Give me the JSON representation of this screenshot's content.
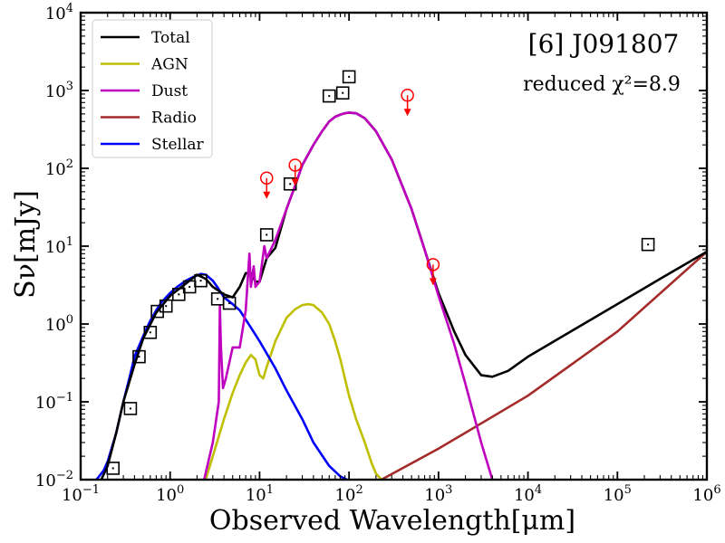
{
  "chart_data": {
    "type": "line",
    "title": "[6] J091807",
    "subtitle": "reduced χ²=8.9",
    "xlabel": "Observed Wavelength[μm]",
    "ylabel": "Sν[mJy]",
    "x_scale": "log",
    "y_scale": "log",
    "xlim": [
      0.1,
      1000000
    ],
    "ylim": [
      0.01,
      10000
    ],
    "x_ticks": [
      {
        "value": 0.1,
        "base": "10",
        "exp": "−1"
      },
      {
        "value": 1,
        "base": "10",
        "exp": "0"
      },
      {
        "value": 10,
        "base": "10",
        "exp": "1"
      },
      {
        "value": 100,
        "base": "10",
        "exp": "2"
      },
      {
        "value": 1000,
        "base": "10",
        "exp": "3"
      },
      {
        "value": 10000,
        "base": "10",
        "exp": "4"
      },
      {
        "value": 100000,
        "base": "10",
        "exp": "5"
      },
      {
        "value": 1000000,
        "base": "10",
        "exp": "6"
      }
    ],
    "y_ticks": [
      {
        "value": 0.01,
        "base": "10",
        "exp": "−2"
      },
      {
        "value": 0.1,
        "base": "10",
        "exp": "−1"
      },
      {
        "value": 1,
        "base": "10",
        "exp": "0"
      },
      {
        "value": 10,
        "base": "10",
        "exp": "1"
      },
      {
        "value": 100,
        "base": "10",
        "exp": "2"
      },
      {
        "value": 1000,
        "base": "10",
        "exp": "3"
      },
      {
        "value": 10000,
        "base": "10",
        "exp": "4"
      }
    ],
    "legend_position": "top-left",
    "grid": false,
    "series": [
      {
        "name": "Total",
        "color": "#000000",
        "x": [
          0.17,
          0.2,
          0.25,
          0.3,
          0.4,
          0.5,
          0.7,
          1.0,
          1.5,
          2.0,
          2.5,
          3.0,
          4.0,
          5.0,
          6.0,
          7.0,
          8.0,
          9.0,
          10.0,
          12.0,
          15.0,
          20.0,
          25.0,
          30.0,
          40.0,
          50.0,
          60.0,
          70.0,
          80.0,
          90.0,
          100.0,
          120.0,
          150.0,
          200.0,
          300.0,
          500.0,
          700.0,
          1000.0,
          1500.0,
          2000.0,
          3000.0,
          4000.0,
          6000.0,
          10000.0,
          30000.0,
          100000.0,
          300000.0,
          1000000.0
        ],
        "y": [
          0.01,
          0.015,
          0.04,
          0.1,
          0.3,
          0.65,
          1.4,
          2.3,
          3.3,
          4.3,
          3.8,
          3.0,
          2.4,
          2.2,
          3.0,
          4.5,
          4.5,
          3.5,
          3.5,
          7.0,
          9.5,
          30.0,
          60.0,
          110.0,
          200.0,
          300.0,
          400.0,
          460.0,
          490.0,
          510.0,
          520.0,
          510.0,
          440.0,
          300.0,
          130.0,
          30.0,
          9.0,
          2.5,
          0.8,
          0.4,
          0.22,
          0.21,
          0.25,
          0.38,
          0.8,
          1.8,
          3.8,
          8.5
        ]
      },
      {
        "name": "AGN",
        "color": "#bfbf00",
        "x": [
          2.5,
          3.0,
          4.0,
          5.0,
          6.0,
          7.0,
          8.0,
          9.0,
          10.0,
          11.0,
          12.0,
          15.0,
          20.0,
          25.0,
          30.0,
          35.0,
          40.0,
          50.0,
          60.0,
          70.0,
          80.0,
          100.0,
          120.0,
          150.0,
          180.0,
          200.0,
          230.0
        ],
        "y": [
          0.01,
          0.02,
          0.06,
          0.13,
          0.22,
          0.32,
          0.4,
          0.35,
          0.22,
          0.2,
          0.28,
          0.6,
          1.2,
          1.55,
          1.75,
          1.8,
          1.75,
          1.4,
          1.0,
          0.6,
          0.35,
          0.12,
          0.06,
          0.03,
          0.016,
          0.012,
          0.01
        ]
      },
      {
        "name": "Dust",
        "color": "#bf00bf",
        "x": [
          2.4,
          3.0,
          3.5,
          3.6,
          3.7,
          3.9,
          4.2,
          5.0,
          6.0,
          7.0,
          7.7,
          8.0,
          8.6,
          9.0,
          10.0,
          11.3,
          12.0,
          13.0,
          15.0,
          20.0,
          25.0,
          30.0,
          40.0,
          50.0,
          60.0,
          70.0,
          80.0,
          90.0,
          100.0,
          120.0,
          150.0,
          200.0,
          300.0,
          500.0,
          700.0,
          1000.0,
          1500.0,
          2000.0,
          3000.0,
          4000.0
        ],
        "y": [
          0.01,
          0.03,
          0.1,
          1.7,
          0.5,
          0.15,
          0.2,
          0.5,
          0.5,
          1.5,
          8.0,
          3.0,
          5.5,
          3.0,
          3.5,
          10.0,
          7.0,
          8.5,
          12.0,
          30.0,
          60.0,
          110.0,
          200.0,
          300.0,
          400.0,
          460.0,
          490.0,
          510.0,
          520.0,
          510.0,
          440.0,
          300.0,
          130.0,
          30.0,
          9.0,
          2.3,
          0.55,
          0.17,
          0.03,
          0.01
        ]
      },
      {
        "name": "Radio",
        "color": "#a52a2a",
        "x": [
          230.0,
          1000.0,
          10000.0,
          100000.0,
          1000000.0
        ],
        "y": [
          0.01,
          0.025,
          0.12,
          0.8,
          8.5
        ]
      },
      {
        "name": "Stellar",
        "color": "#0000ff",
        "x": [
          0.15,
          0.18,
          0.2,
          0.25,
          0.3,
          0.35,
          0.4,
          0.5,
          0.6,
          0.7,
          0.8,
          1.0,
          1.2,
          1.5,
          1.8,
          2.0,
          2.2,
          2.5,
          3.0,
          3.5,
          4.0,
          5.0,
          6.0,
          8.0,
          10.0,
          15.0,
          20.0,
          30.0,
          40.0,
          60.0,
          80.0,
          95.0
        ],
        "y": [
          0.01,
          0.013,
          0.017,
          0.04,
          0.1,
          0.2,
          0.38,
          0.7,
          1.1,
          1.5,
          1.9,
          2.5,
          3.0,
          3.6,
          4.0,
          4.2,
          4.4,
          4.3,
          3.6,
          2.8,
          2.2,
          1.8,
          1.5,
          0.9,
          0.6,
          0.27,
          0.14,
          0.06,
          0.03,
          0.015,
          0.011,
          0.01
        ]
      }
    ],
    "observed_points": {
      "name": "Observed",
      "marker": "square",
      "color": "#000000",
      "x": [
        0.23,
        0.36,
        0.45,
        0.6,
        0.72,
        0.9,
        1.25,
        1.65,
        2.2,
        3.4,
        4.6,
        12.0,
        22.0,
        60.0,
        85.0,
        100.0,
        220000.0
      ],
      "y": [
        0.014,
        0.082,
        0.38,
        0.78,
        1.45,
        1.7,
        2.4,
        3.0,
        3.6,
        2.1,
        1.85,
        14.0,
        63.0,
        850.0,
        930.0,
        1500.0,
        10.5
      ]
    },
    "upper_limits": {
      "name": "Upper limits",
      "marker": "circle-arrow-down",
      "color": "#ff0000",
      "x": [
        12.0,
        25.0,
        450.0,
        870.0
      ],
      "y": [
        75.0,
        110.0,
        870.0,
        5.8
      ]
    }
  }
}
